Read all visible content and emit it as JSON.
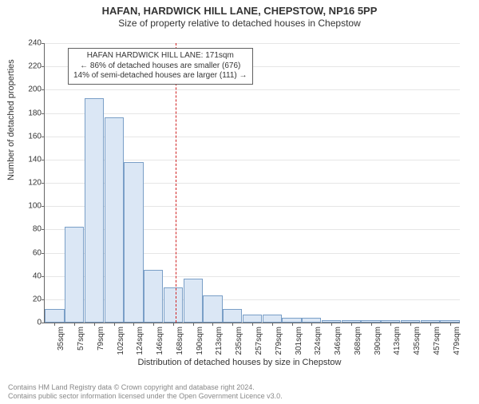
{
  "title_line1": "HAFAN, HARDWICK HILL LANE, CHEPSTOW, NP16 5PP",
  "title_line2": "Size of property relative to detached houses in Chepstow",
  "ylabel": "Number of detached properties",
  "xlabel": "Distribution of detached houses by size in Chepstow",
  "footer_line1": "Contains HM Land Registry data © Crown copyright and database right 2024.",
  "footer_line2": "Contains public sector information licensed under the Open Government Licence v3.0.",
  "annotation": {
    "line1": "HAFAN HARDWICK HILL LANE: 171sqm",
    "line2": "← 86% of detached houses are smaller (676)",
    "line3": "14% of semi-detached houses are larger (111) →"
  },
  "chart": {
    "type": "histogram",
    "ylim": [
      0,
      240
    ],
    "ytick_step": 20,
    "bar_fill": "#dbe7f5",
    "bar_stroke": "#7a9fc7",
    "grid_color": "#e6e6e6",
    "axis_color": "#666666",
    "reference_x": 171,
    "reference_color": "#d02020",
    "background_color": "#ffffff",
    "x_tick_labels": [
      "35sqm",
      "57sqm",
      "79sqm",
      "102sqm",
      "124sqm",
      "146sqm",
      "168sqm",
      "190sqm",
      "213sqm",
      "235sqm",
      "257sqm",
      "279sqm",
      "301sqm",
      "324sqm",
      "346sqm",
      "368sqm",
      "390sqm",
      "413sqm",
      "435sqm",
      "457sqm",
      "479sqm"
    ],
    "values": [
      12,
      82,
      193,
      176,
      138,
      45,
      30,
      38,
      23,
      12,
      7,
      7,
      4,
      4,
      2,
      2,
      2,
      2,
      2,
      2,
      2
    ],
    "title_fontsize": 13,
    "subtitle_fontsize": 12,
    "label_fontsize": 11,
    "tick_fontsize": 10,
    "annotation_fontsize": 10,
    "footer_fontsize": 9
  }
}
